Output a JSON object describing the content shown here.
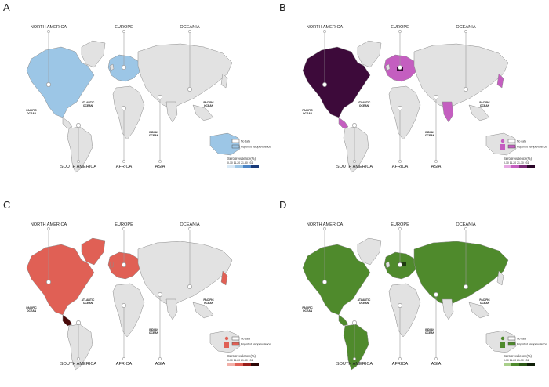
{
  "panels": [
    {
      "id": "A",
      "label": "A",
      "accent": "#9cc6e6",
      "dark": "#1a3a78",
      "ramp": [
        "#d8e9f6",
        "#9cc6e6",
        "#4d86c6",
        "#1a3a78"
      ]
    },
    {
      "id": "B",
      "label": "B",
      "accent": "#c45ec0",
      "dark": "#3d0a3a",
      "ramp": [
        "#e7a8e3",
        "#c45ec0",
        "#7c2c78",
        "#2a0528"
      ]
    },
    {
      "id": "C",
      "label": "C",
      "accent": "#e06055",
      "dark": "#4a0a0a",
      "ramp": [
        "#f2b0a8",
        "#e06055",
        "#9a1f1a",
        "#2c0505"
      ]
    },
    {
      "id": "D",
      "label": "D",
      "accent": "#4f8a2c",
      "dark": "#1e3a10",
      "ramp": [
        "#a9cf8a",
        "#4f8a2c",
        "#2c5a16",
        "#0f1f08"
      ]
    }
  ],
  "regions": {
    "north_america": "NORTH AMERICA",
    "europe": "EUROPE",
    "oceania": "OCEANIA",
    "south_america": "SOUTH AMERICA",
    "africa": "AFRICA",
    "asia": "ASIA"
  },
  "oceans": {
    "atlantic_1": "ATLANTIC",
    "atlantic_2": "OCEAN",
    "pacific_1": "PACIFIC",
    "pacific_2": "OCEAN",
    "indian_1": "INDIAN",
    "indian_2": "OCEAN"
  },
  "legend": {
    "no_data": "No data",
    "reported": "Reported seroprevalence",
    "title": "Seroprevalence(%)",
    "ticks": "0-10  11-20  21-30  >31"
  },
  "colors": {
    "land": "#e2e2e2",
    "border": "#8c8c8c",
    "line": "#9a9a9a"
  }
}
